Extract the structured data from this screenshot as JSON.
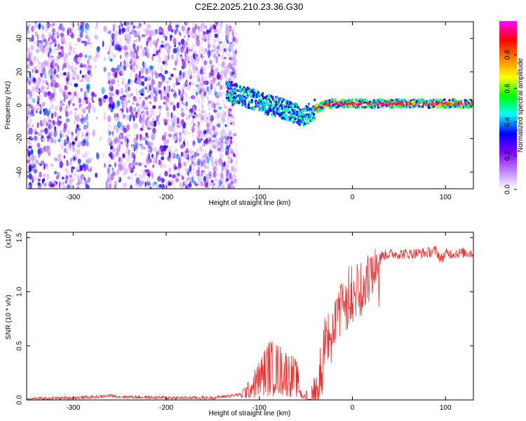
{
  "title": "C2E2.2025.210.23.36.G30",
  "chart_data": [
    {
      "type": "heatmap",
      "xlabel": "Height of straight line (km)",
      "ylabel": "Frequency (Hz)",
      "xlim": [
        -350,
        130
      ],
      "ylim": [
        -50,
        50
      ],
      "xticks": [
        -300,
        -200,
        -100,
        0,
        100
      ],
      "yticks": [
        -40,
        -20,
        0,
        20,
        40
      ],
      "colorbar": {
        "label": "Normalized spectral amplitude",
        "range": [
          0,
          1
        ],
        "ticks": [
          "0.0",
          "0.2",
          "0.4",
          "0.6",
          "0.8"
        ],
        "colors": [
          "#ffffff",
          "#c080ff",
          "#8000ff",
          "#0000ff",
          "#00ffff",
          "#00ff00",
          "#ffff00",
          "#ff8000",
          "#ff0000",
          "#ff00ff"
        ]
      },
      "ridge": {
        "x": [
          -130,
          -120,
          -110,
          -100,
          -90,
          -80,
          -70,
          -60,
          -55,
          -50,
          -45,
          -40,
          -30,
          -20,
          -10,
          0,
          20,
          50,
          80,
          100,
          130
        ],
        "y": [
          8,
          6,
          4,
          2,
          0,
          -1,
          -3,
          -5,
          -7,
          -6,
          -4,
          -2,
          0,
          1,
          1,
          1,
          1,
          1,
          1,
          1,
          1
        ]
      }
    },
    {
      "type": "line",
      "xlabel": "Height of straight line (km)",
      "ylabel": "SNR (10 * v/v)",
      "multiplier_label": "(x10",
      "multiplier_exp": "4",
      "xlim": [
        -350,
        130
      ],
      "ylim": [
        0,
        1.55
      ],
      "xticks": [
        -300,
        -200,
        -100,
        0,
        100
      ],
      "yticks": [
        "0.0",
        "0.5",
        "1.0",
        "1.5"
      ],
      "line_color": "#e83030",
      "series_envelope": {
        "x": [
          -350,
          -300,
          -270,
          -260,
          -250,
          -200,
          -150,
          -120,
          -110,
          -100,
          -90,
          -80,
          -70,
          -60,
          -55,
          -50,
          -45,
          -40,
          -35,
          -30,
          -25,
          -20,
          -10,
          0,
          10,
          20,
          30,
          40,
          60,
          80,
          90,
          95,
          100,
          120,
          130
        ],
        "y": [
          0.01,
          0.02,
          0.03,
          0.04,
          0.03,
          0.02,
          0.02,
          0.05,
          0.1,
          0.2,
          0.3,
          0.28,
          0.25,
          0.2,
          0.05,
          0.02,
          0.05,
          0.25,
          0.45,
          0.65,
          0.8,
          0.95,
          1.1,
          1.2,
          1.25,
          1.32,
          1.33,
          1.35,
          1.35,
          1.36,
          1.38,
          1.3,
          1.35,
          1.36,
          1.36
        ]
      }
    }
  ]
}
